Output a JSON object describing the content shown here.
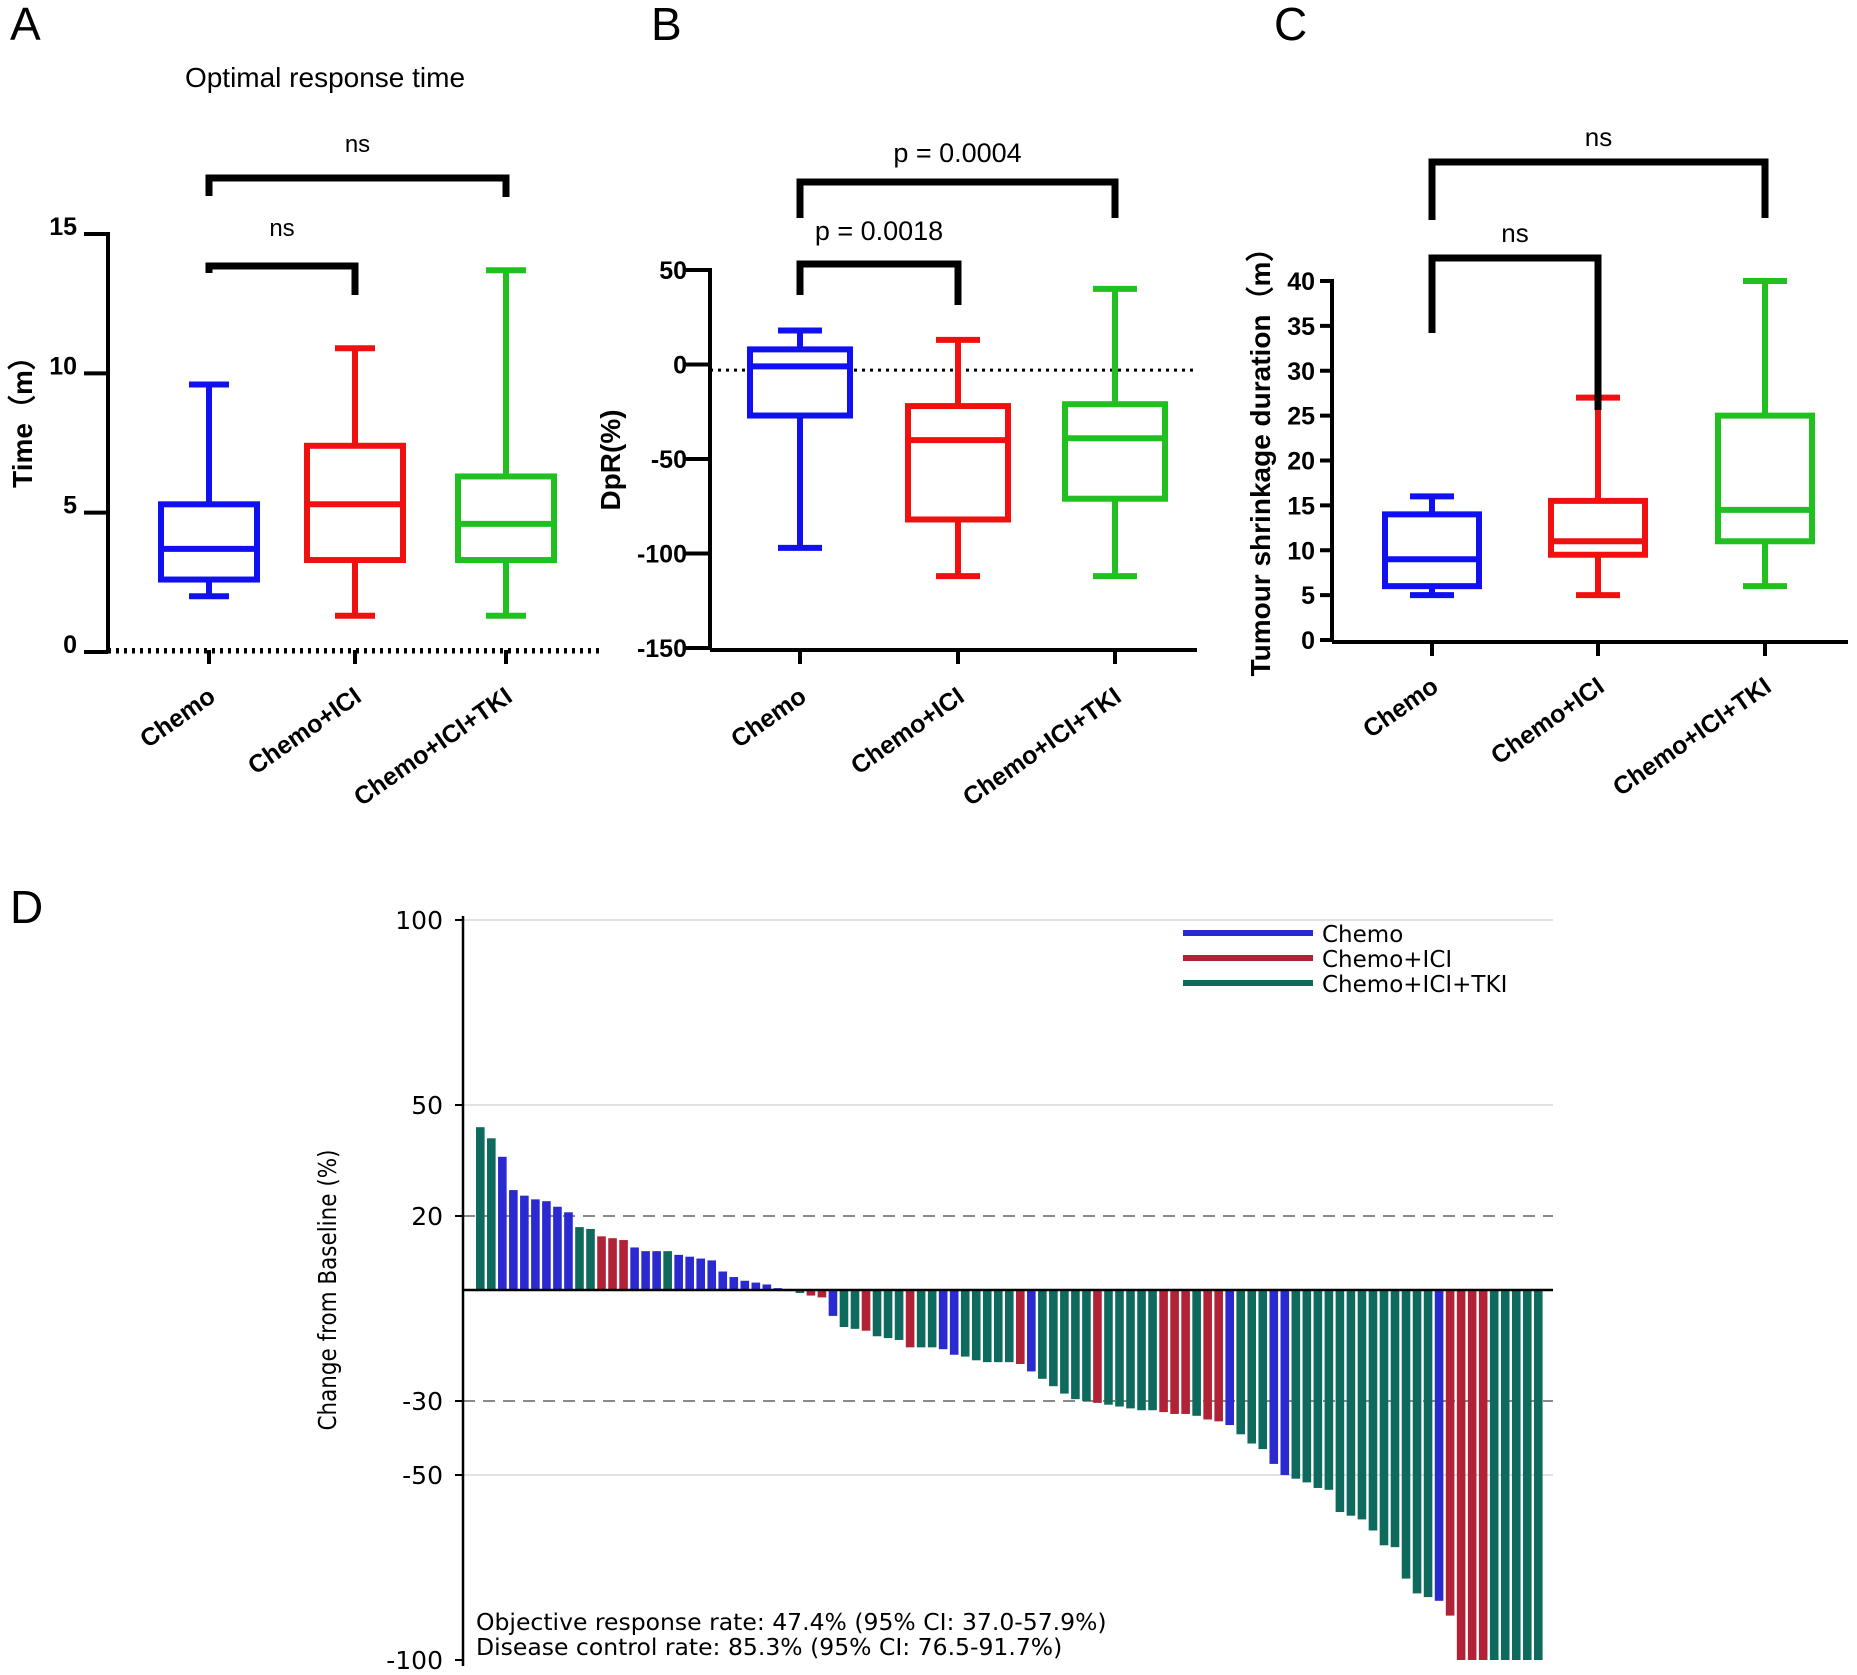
{
  "chart_data": [
    {
      "panel": "A",
      "type": "box",
      "title": "Optimal response time",
      "ylabel": "Time（m）",
      "xlabel": "",
      "ylim": [
        0,
        15
      ],
      "yticks": [
        "0",
        "5",
        "10",
        "15"
      ],
      "categories": [
        "Chemo",
        "Chemo+ICI",
        "Chemo+ICI+TKI"
      ],
      "colors": [
        "#1010f0",
        "#f01010",
        "#20c020"
      ],
      "boxes": [
        {
          "min": 2.0,
          "q1": 2.6,
          "median": 3.7,
          "q3": 5.3,
          "max": 9.6
        },
        {
          "min": 1.3,
          "q1": 3.3,
          "median": 5.3,
          "q3": 7.4,
          "max": 10.9
        },
        {
          "min": 1.3,
          "q1": 3.3,
          "median": 4.6,
          "q3": 6.3,
          "max": 13.7
        }
      ],
      "reference_line": 0,
      "comparisons": [
        {
          "from": 0,
          "to": 1,
          "label": "ns"
        },
        {
          "from": 0,
          "to": 2,
          "label": "ns"
        }
      ]
    },
    {
      "panel": "B",
      "type": "box",
      "title": "",
      "ylabel": "DpR(%)",
      "xlabel": "",
      "ylim": [
        -150,
        50
      ],
      "yticks": [
        "-150",
        "-100",
        "-50",
        "0",
        "50"
      ],
      "categories": [
        "Chemo",
        "Chemo+ICI",
        "Chemo+ICI+TKI"
      ],
      "colors": [
        "#1010f0",
        "#f01010",
        "#20c020"
      ],
      "boxes": [
        {
          "min": -97,
          "q1": -27,
          "median": -1,
          "q3": 8,
          "max": 18
        },
        {
          "min": -112,
          "q1": -82,
          "median": -40,
          "q3": -22,
          "max": 13
        },
        {
          "min": -112,
          "q1": -71,
          "median": -39,
          "q3": -21,
          "max": 40
        }
      ],
      "reference_line": -3,
      "comparisons": [
        {
          "from": 0,
          "to": 1,
          "label": "p = 0.0018"
        },
        {
          "from": 0,
          "to": 2,
          "label": "p = 0.0004"
        }
      ]
    },
    {
      "panel": "C",
      "type": "box",
      "title": "",
      "ylabel": "Tumour shrinkage duration（m）",
      "xlabel": "",
      "ylim": [
        0,
        40
      ],
      "yticks": [
        "0",
        "5",
        "10",
        "15",
        "20",
        "25",
        "30",
        "35",
        "40"
      ],
      "categories": [
        "Chemo",
        "Chemo+ICI",
        "Chemo+ICI+TKI"
      ],
      "colors": [
        "#1010f0",
        "#f01010",
        "#20c020"
      ],
      "boxes": [
        {
          "min": 5,
          "q1": 6,
          "median": 9,
          "q3": 14,
          "max": 16
        },
        {
          "min": 5,
          "q1": 9.5,
          "median": 11,
          "q3": 15.5,
          "max": 27
        },
        {
          "min": 6,
          "q1": 11,
          "median": 14.5,
          "q3": 25,
          "max": 40
        }
      ],
      "comparisons": [
        {
          "from": 0,
          "to": 1,
          "label": "ns"
        },
        {
          "from": 0,
          "to": 2,
          "label": "ns"
        }
      ]
    },
    {
      "panel": "D",
      "type": "waterfall",
      "title": "",
      "ylabel": "Change from Baseline (%)",
      "xlabel": "",
      "ylim": [
        -100,
        100
      ],
      "yticks": [
        {
          "value": 100,
          "label": "100"
        },
        {
          "value": 50,
          "label": "50"
        },
        {
          "value": 20,
          "label": "20"
        },
        {
          "value": -30,
          "label": "-30"
        },
        {
          "value": -50,
          "label": "-50"
        },
        {
          "value": -100,
          "label": "-100"
        }
      ],
      "threshold_lines": [
        20,
        -30
      ],
      "legend_location": "top-right",
      "series": [
        {
          "name": "Chemo",
          "key": "C",
          "color": "#2a2ad0"
        },
        {
          "name": "Chemo+ICI",
          "key": "I",
          "color": "#b22236"
        },
        {
          "name": "Chemo+ICI+TKI",
          "key": "T",
          "color": "#0d6a5c"
        }
      ],
      "bars": [
        {
          "v": 44,
          "s": "T"
        },
        {
          "v": 41,
          "s": "T"
        },
        {
          "v": 36,
          "s": "C"
        },
        {
          "v": 27,
          "s": "C"
        },
        {
          "v": 25.5,
          "s": "C"
        },
        {
          "v": 24.5,
          "s": "C"
        },
        {
          "v": 24,
          "s": "C"
        },
        {
          "v": 22.5,
          "s": "C"
        },
        {
          "v": 21,
          "s": "C"
        },
        {
          "v": 17,
          "s": "T"
        },
        {
          "v": 16.5,
          "s": "T"
        },
        {
          "v": 14.5,
          "s": "I"
        },
        {
          "v": 14,
          "s": "I"
        },
        {
          "v": 13.5,
          "s": "I"
        },
        {
          "v": 11.5,
          "s": "C"
        },
        {
          "v": 10.5,
          "s": "C"
        },
        {
          "v": 10.5,
          "s": "C"
        },
        {
          "v": 10.5,
          "s": "T"
        },
        {
          "v": 9.5,
          "s": "C"
        },
        {
          "v": 9,
          "s": "C"
        },
        {
          "v": 8.5,
          "s": "C"
        },
        {
          "v": 8,
          "s": "C"
        },
        {
          "v": 5,
          "s": "C"
        },
        {
          "v": 3.5,
          "s": "C"
        },
        {
          "v": 2.5,
          "s": "C"
        },
        {
          "v": 2,
          "s": "C"
        },
        {
          "v": 1.5,
          "s": "C"
        },
        {
          "v": 0.5,
          "s": "C"
        },
        {
          "v": -0.3,
          "s": "C"
        },
        {
          "v": -0.8,
          "s": "T"
        },
        {
          "v": -1.5,
          "s": "I"
        },
        {
          "v": -2,
          "s": "I"
        },
        {
          "v": -7,
          "s": "C"
        },
        {
          "v": -10,
          "s": "T"
        },
        {
          "v": -10.5,
          "s": "T"
        },
        {
          "v": -11,
          "s": "I"
        },
        {
          "v": -12.5,
          "s": "T"
        },
        {
          "v": -13,
          "s": "T"
        },
        {
          "v": -13.5,
          "s": "T"
        },
        {
          "v": -15.5,
          "s": "I"
        },
        {
          "v": -15.5,
          "s": "T"
        },
        {
          "v": -15.5,
          "s": "T"
        },
        {
          "v": -16,
          "s": "C"
        },
        {
          "v": -17.5,
          "s": "C"
        },
        {
          "v": -18,
          "s": "T"
        },
        {
          "v": -19,
          "s": "T"
        },
        {
          "v": -19.5,
          "s": "T"
        },
        {
          "v": -19.5,
          "s": "T"
        },
        {
          "v": -19.5,
          "s": "T"
        },
        {
          "v": -20,
          "s": "I"
        },
        {
          "v": -22,
          "s": "C"
        },
        {
          "v": -24,
          "s": "T"
        },
        {
          "v": -26,
          "s": "T"
        },
        {
          "v": -28,
          "s": "T"
        },
        {
          "v": -29.5,
          "s": "T"
        },
        {
          "v": -30,
          "s": "T"
        },
        {
          "v": -30.5,
          "s": "I"
        },
        {
          "v": -31,
          "s": "T"
        },
        {
          "v": -31.5,
          "s": "T"
        },
        {
          "v": -32,
          "s": "T"
        },
        {
          "v": -32.5,
          "s": "T"
        },
        {
          "v": -32.5,
          "s": "T"
        },
        {
          "v": -33,
          "s": "I"
        },
        {
          "v": -33.5,
          "s": "I"
        },
        {
          "v": -33.5,
          "s": "I"
        },
        {
          "v": -34,
          "s": "T"
        },
        {
          "v": -35,
          "s": "I"
        },
        {
          "v": -35.5,
          "s": "I"
        },
        {
          "v": -36.5,
          "s": "C"
        },
        {
          "v": -39,
          "s": "T"
        },
        {
          "v": -41.5,
          "s": "T"
        },
        {
          "v": -43,
          "s": "T"
        },
        {
          "v": -47,
          "s": "C"
        },
        {
          "v": -50,
          "s": "C"
        },
        {
          "v": -51,
          "s": "T"
        },
        {
          "v": -52,
          "s": "T"
        },
        {
          "v": -53.5,
          "s": "T"
        },
        {
          "v": -54,
          "s": "T"
        },
        {
          "v": -60,
          "s": "T"
        },
        {
          "v": -61,
          "s": "T"
        },
        {
          "v": -62,
          "s": "T"
        },
        {
          "v": -65,
          "s": "T"
        },
        {
          "v": -69,
          "s": "T"
        },
        {
          "v": -69.5,
          "s": "T"
        },
        {
          "v": -78,
          "s": "T"
        },
        {
          "v": -82,
          "s": "T"
        },
        {
          "v": -83,
          "s": "T"
        },
        {
          "v": -84,
          "s": "C"
        },
        {
          "v": -88,
          "s": "I"
        },
        {
          "v": -100,
          "s": "I"
        },
        {
          "v": -100,
          "s": "I"
        },
        {
          "v": -100,
          "s": "I"
        },
        {
          "v": -100,
          "s": "T"
        },
        {
          "v": -100,
          "s": "T"
        },
        {
          "v": -100,
          "s": "T"
        },
        {
          "v": -100,
          "s": "T"
        },
        {
          "v": -100,
          "s": "T"
        }
      ],
      "annotations": [
        "Objective response rate: 47.4% (95% CI: 37.0-57.9%)",
        "Disease control rate: 85.3% (95% CI: 76.5-91.7%)"
      ]
    }
  ],
  "panel_labels": [
    "A",
    "B",
    "C",
    "D"
  ]
}
